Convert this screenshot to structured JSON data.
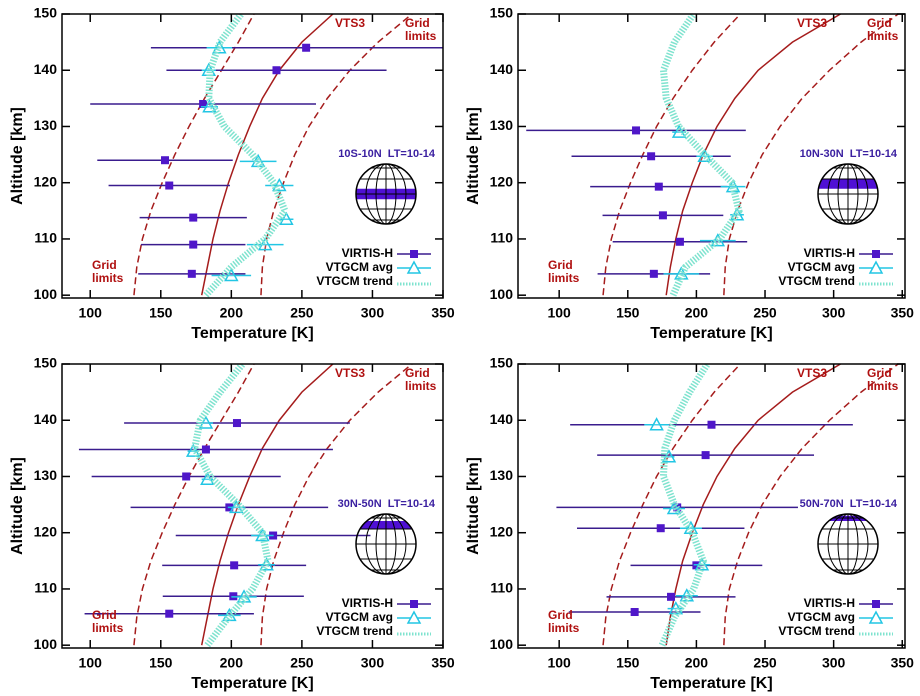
{
  "chart_data": [
    {
      "type": "scatter",
      "region_label": "10S-10N  LT=10-14",
      "x_label": "Temperature [K]",
      "y_label": "Altitude [km]",
      "xlim": [
        80,
        350
      ],
      "ylim": [
        99.5,
        150
      ],
      "xticks": [
        100,
        150,
        200,
        250,
        300,
        350
      ],
      "yticks": [
        100,
        110,
        120,
        130,
        140,
        150
      ],
      "vts3_label": "VTS3",
      "grid_label": [
        "Grid",
        "limits"
      ],
      "series": [
        {
          "name": "VIRTIS-H",
          "color": "#4f17c9",
          "x": [
            253,
            232,
            180,
            153,
            156,
            173,
            173,
            172
          ],
          "y": [
            144,
            140,
            134,
            124,
            119.5,
            113.8,
            109,
            103.8
          ],
          "xerr": [
            110,
            78,
            80,
            48,
            43,
            38,
            37,
            38
          ]
        },
        {
          "name": "VTGCM avg",
          "color": "#22c6e4",
          "x": [
            191.5,
            184,
            184.5,
            219,
            234,
            239,
            224,
            200
          ],
          "y": [
            144,
            140,
            133.5,
            123.8,
            119.5,
            113.5,
            109,
            103.5
          ],
          "xerr": [
            9,
            5,
            6,
            13,
            10,
            5,
            13,
            14
          ]
        },
        {
          "name": "VTGCM trend",
          "color": "#7fe3cf",
          "x": [
            182,
            200,
            224,
            238,
            230,
            215,
            195,
            184,
            185,
            192,
            207
          ],
          "y": [
            100,
            105,
            110,
            115,
            120,
            125,
            130,
            135,
            140,
            145,
            150
          ]
        }
      ],
      "model_curves": [
        {
          "color": "#a51c1c",
          "dashed": false,
          "x": [
            179,
            183,
            187,
            192,
            198,
            205,
            213,
            222,
            234,
            250,
            272
          ],
          "y": [
            100,
            105,
            110,
            115,
            120,
            125,
            130,
            135,
            140,
            145,
            150
          ]
        },
        {
          "color": "#a51c1c",
          "dashed": true,
          "x": [
            131,
            133,
            137,
            143,
            151,
            160,
            170,
            181,
            193,
            205,
            216
          ],
          "y": [
            100,
            105,
            110,
            115,
            120,
            125,
            130,
            135,
            140,
            145,
            150
          ]
        },
        {
          "color": "#a51c1c",
          "dashed": true,
          "x": [
            221,
            222,
            225,
            230,
            237,
            245,
            255,
            268,
            284,
            304,
            328
          ],
          "y": [
            100,
            105,
            110,
            115,
            120,
            125,
            130,
            135,
            140,
            145,
            150
          ]
        }
      ]
    },
    {
      "type": "scatter",
      "region_label": "10N-30N  LT=10-14",
      "x_label": "Temperature [K]",
      "y_label": "Altitude [km]",
      "xlim": [
        70,
        352
      ],
      "ylim": [
        99.5,
        150
      ],
      "xticks": [
        100,
        150,
        200,
        250,
        300,
        350
      ],
      "yticks": [
        100,
        110,
        120,
        130,
        140,
        150
      ],
      "vts3_label": "VTS3",
      "grid_label": [
        "Grid",
        "limits"
      ],
      "series": [
        {
          "name": "VIRTIS-H",
          "color": "#4f17c9",
          "x": [
            156,
            167,
            172.6,
            175.6,
            188,
            169
          ],
          "y": [
            129.3,
            124.7,
            119.3,
            114.2,
            109.5,
            103.8
          ],
          "xerr": [
            80,
            58,
            50,
            44,
            49,
            41
          ]
        },
        {
          "name": "VTGCM avg",
          "color": "#22c6e4",
          "x": [
            187.4,
            206,
            226.7,
            229.6,
            215.6,
            189
          ],
          "y": [
            129,
            124.7,
            119.3,
            114.3,
            109.7,
            103.8
          ],
          "xerr": [
            5,
            6,
            9,
            5,
            13,
            13
          ]
        },
        {
          "name": "VTGCM trend",
          "color": "#7fe3cf",
          "x": [
            183,
            192,
            217,
            231,
            226,
            206,
            187,
            178,
            176,
            184,
            198
          ],
          "y": [
            100,
            105,
            110,
            115,
            120,
            125,
            130,
            135,
            140,
            145,
            150
          ]
        }
      ],
      "model_curves": [
        {
          "color": "#a51c1c",
          "dashed": false,
          "x": [
            178,
            181,
            185,
            190,
            197,
            205,
            215,
            228,
            245,
            270,
            305
          ],
          "y": [
            100,
            105,
            110,
            115,
            120,
            125,
            130,
            135,
            140,
            145,
            150
          ]
        },
        {
          "color": "#a51c1c",
          "dashed": true,
          "x": [
            132,
            134,
            138,
            144,
            152,
            161,
            171,
            183,
            197,
            213,
            232
          ],
          "y": [
            100,
            105,
            110,
            115,
            120,
            125,
            130,
            135,
            140,
            145,
            150
          ]
        },
        {
          "color": "#a51c1c",
          "dashed": true,
          "x": [
            220,
            221,
            224,
            230,
            238,
            248,
            261,
            277,
            297,
            320,
            347
          ],
          "y": [
            100,
            105,
            110,
            115,
            120,
            125,
            130,
            135,
            140,
            145,
            150
          ]
        }
      ]
    },
    {
      "type": "scatter",
      "region_label": "30N-50N  LT=10-14",
      "x_label": "Temperature [K]",
      "y_label": "Altitude [km]",
      "xlim": [
        80,
        350
      ],
      "ylim": [
        99.5,
        150
      ],
      "xticks": [
        100,
        150,
        200,
        250,
        300,
        350
      ],
      "yticks": [
        100,
        110,
        120,
        130,
        140,
        150
      ],
      "vts3_label": "VTS3",
      "grid_label": [
        "Grid",
        "limits"
      ],
      "series": [
        {
          "name": "VIRTIS-H",
          "color": "#4f17c9",
          "x": [
            204,
            182,
            168,
            198.6,
            229.6,
            202,
            201.4,
            156
          ],
          "y": [
            139.5,
            134.8,
            130,
            124.5,
            119.5,
            114.2,
            108.7,
            105.6
          ],
          "xerr": [
            80,
            90,
            67,
            70,
            69,
            51,
            50,
            60
          ]
        },
        {
          "name": "VTGCM avg",
          "color": "#22c6e4",
          "x": [
            182,
            173,
            183,
            203.5,
            222,
            225,
            209,
            198.6
          ],
          "y": [
            139.5,
            134.5,
            129.5,
            124.5,
            119.5,
            114.3,
            108.6,
            105.3
          ],
          "xerr": [
            5,
            4,
            4,
            6,
            8,
            6,
            9,
            8
          ]
        },
        {
          "name": "VTGCM trend",
          "color": "#7fe3cf",
          "x": [
            183,
            198,
            215,
            226,
            222,
            205,
            185,
            174,
            178,
            192,
            208
          ],
          "y": [
            100,
            105,
            110,
            115,
            120,
            125,
            130,
            135,
            140,
            145,
            150
          ]
        }
      ],
      "model_curves": [
        {
          "color": "#a51c1c",
          "dashed": false,
          "x": [
            179,
            183,
            187,
            192,
            198,
            205,
            213,
            222,
            234,
            250,
            272
          ],
          "y": [
            100,
            105,
            110,
            115,
            120,
            125,
            130,
            135,
            140,
            145,
            150
          ]
        },
        {
          "color": "#a51c1c",
          "dashed": true,
          "x": [
            131,
            133,
            137,
            143,
            151,
            160,
            170,
            181,
            193,
            205,
            216
          ],
          "y": [
            100,
            105,
            110,
            115,
            120,
            125,
            130,
            135,
            140,
            145,
            150
          ]
        },
        {
          "color": "#a51c1c",
          "dashed": true,
          "x": [
            221,
            222,
            225,
            230,
            237,
            245,
            255,
            268,
            284,
            304,
            328
          ],
          "y": [
            100,
            105,
            110,
            115,
            120,
            125,
            130,
            135,
            140,
            145,
            150
          ]
        }
      ]
    },
    {
      "type": "scatter",
      "region_label": "50N-70N  LT=10-14",
      "x_label": "Temperature [K]",
      "y_label": "Altitude [km]",
      "xlim": [
        70,
        352
      ],
      "ylim": [
        99.5,
        150
      ],
      "xticks": [
        100,
        150,
        200,
        250,
        300,
        350
      ],
      "yticks": [
        100,
        110,
        120,
        130,
        140,
        150
      ],
      "vts3_label": "VTS3",
      "grid_label": [
        "Grid",
        "limits"
      ],
      "series": [
        {
          "name": "VIRTIS-H",
          "color": "#4f17c9",
          "x": [
            211,
            206.7,
            186,
            174,
            200,
            181.5,
            155
          ],
          "y": [
            139.2,
            133.8,
            124.5,
            120.8,
            114.2,
            108.6,
            105.9
          ],
          "xerr": [
            103,
            79,
            88,
            61,
            48,
            47,
            48
          ]
        },
        {
          "name": "VTGCM avg",
          "color": "#22c6e4",
          "x": [
            171,
            180,
            183.7,
            196,
            204,
            193,
            185
          ],
          "y": [
            139.2,
            133.5,
            124.3,
            120.8,
            114.3,
            108.8,
            106.5
          ],
          "xerr": [
            9,
            4,
            8,
            8,
            6,
            8,
            6
          ]
        },
        {
          "name": "VTGCM trend",
          "color": "#7fe3cf",
          "x": [
            175,
            184,
            198,
            205,
            197,
            184,
            176,
            177,
            184,
            195,
            208
          ],
          "y": [
            100,
            105,
            110,
            115,
            120,
            125,
            130,
            135,
            140,
            145,
            150
          ]
        }
      ],
      "model_curves": [
        {
          "color": "#a51c1c",
          "dashed": false,
          "x": [
            178,
            181,
            185,
            190,
            197,
            205,
            215,
            228,
            245,
            270,
            305
          ],
          "y": [
            100,
            105,
            110,
            115,
            120,
            125,
            130,
            135,
            140,
            145,
            150
          ]
        },
        {
          "color": "#a51c1c",
          "dashed": true,
          "x": [
            132,
            134,
            138,
            144,
            152,
            161,
            171,
            183,
            197,
            213,
            232
          ],
          "y": [
            100,
            105,
            110,
            115,
            120,
            125,
            130,
            135,
            140,
            145,
            150
          ]
        },
        {
          "color": "#a51c1c",
          "dashed": true,
          "x": [
            220,
            221,
            224,
            230,
            238,
            248,
            261,
            277,
            297,
            320,
            347
          ],
          "y": [
            100,
            105,
            110,
            115,
            120,
            125,
            130,
            135,
            140,
            145,
            150
          ]
        }
      ]
    }
  ]
}
